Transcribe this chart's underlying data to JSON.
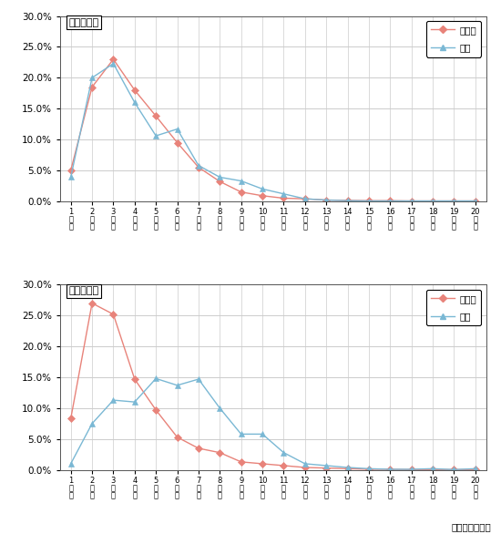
{
  "x": [
    1,
    2,
    3,
    4,
    5,
    6,
    7,
    8,
    9,
    10,
    11,
    12,
    13,
    14,
    15,
    16,
    17,
    18,
    19,
    20
  ],
  "stay_hiagari": [
    5.0,
    18.5,
    23.0,
    18.0,
    13.8,
    9.5,
    5.5,
    3.2,
    1.5,
    0.9,
    0.5,
    0.4,
    0.2,
    0.15,
    0.1,
    0.1,
    0.05,
    0.05,
    0.05,
    0.05
  ],
  "stay_shukuhaku": [
    3.9,
    20.0,
    22.3,
    16.0,
    10.6,
    11.7,
    5.8,
    3.9,
    3.3,
    2.0,
    1.2,
    0.4,
    0.2,
    0.1,
    0.05,
    0.05,
    0.05,
    0.05,
    0.05,
    0.05
  ],
  "move_hiagari": [
    8.3,
    27.0,
    25.2,
    14.7,
    9.7,
    5.3,
    3.5,
    2.8,
    1.3,
    1.0,
    0.7,
    0.4,
    0.3,
    0.2,
    0.1,
    0.1,
    0.05,
    0.05,
    0.05,
    0.05
  ],
  "move_shukuhaku": [
    1.0,
    7.5,
    11.3,
    11.0,
    14.8,
    13.7,
    14.7,
    10.0,
    5.8,
    5.8,
    2.8,
    1.0,
    0.7,
    0.4,
    0.2,
    0.1,
    0.1,
    0.2,
    0.05,
    0.2
  ],
  "color_hiagari": "#e8837a",
  "color_shukuhaku": "#7ab8d4",
  "marker_hiagari": "D",
  "marker_shukuhaku": "^",
  "title_stay": "総滞在時間",
  "title_move": "総移動時間",
  "legend_hiagari": "日帰り",
  "legend_shukuhaku": "宿泊",
  "source_text": "資料：回遊調査",
  "x_numbers": [
    "1",
    "2",
    "3",
    "4",
    "5",
    "6",
    "7",
    "8",
    "9",
    "10",
    "11",
    "12",
    "13",
    "14",
    "15",
    "16",
    "17",
    "18",
    "19",
    "20"
  ]
}
